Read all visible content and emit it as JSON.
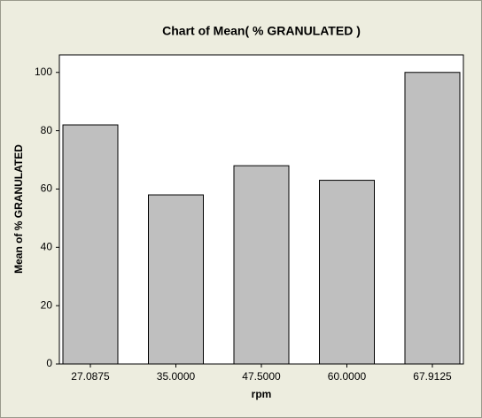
{
  "chart_data": {
    "type": "bar",
    "title": "Chart of Mean( % GRANULATED )",
    "x_label": "rpm",
    "y_label": "Mean of % GRANULATED",
    "categories": [
      "27.0875",
      "35.0000",
      "47.5000",
      "60.0000",
      "67.9125"
    ],
    "values": [
      82,
      58,
      68,
      63,
      100
    ],
    "color": "#bfbfbf",
    "ylim": [
      0,
      106
    ],
    "yticks": [
      0,
      20,
      40,
      60,
      80,
      100
    ],
    "grid": false
  }
}
